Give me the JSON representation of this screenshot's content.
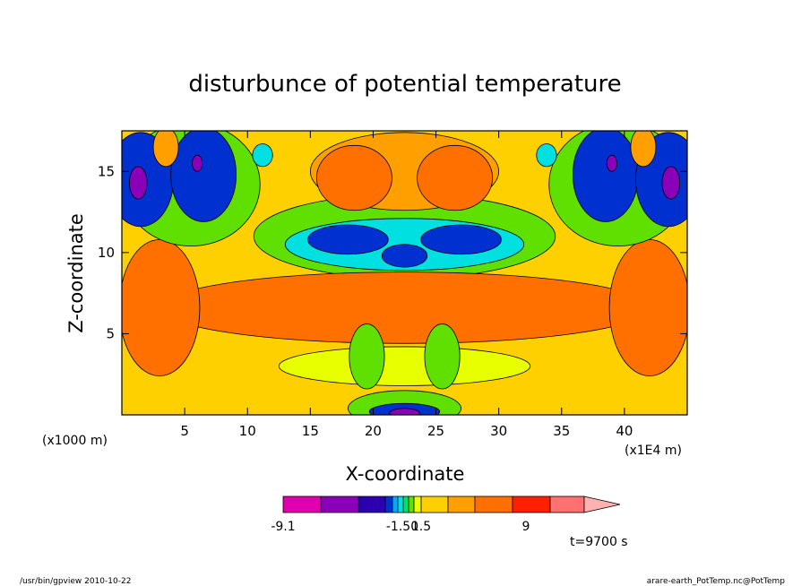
{
  "chart_data": {
    "type": "heatmap",
    "title": "disturbunce of potential temperature",
    "xlabel": "X-coordinate",
    "ylabel": "Z-coordinate",
    "x_unit_left": "(x1000 m)",
    "x_unit_right": "(x1E4 m)",
    "xlim": [
      0,
      45
    ],
    "ylim": [
      0,
      17.5
    ],
    "x_ticks": [
      5,
      10,
      15,
      20,
      25,
      30,
      35,
      40
    ],
    "y_ticks": [
      5,
      10,
      15
    ],
    "colorbar": {
      "tick_labels": [
        "-9.1",
        "-1.50",
        "1.5",
        "9"
      ],
      "colors": [
        "#e000b0",
        "#8a00b8",
        "#2a00b0",
        "#0030d0",
        "#00aaff",
        "#00e0e0",
        "#00e070",
        "#60e000",
        "#e8ff00",
        "#ffd000",
        "#ffa000",
        "#ff7000",
        "#ff2000",
        "#ff7070",
        "#ffb0b0"
      ]
    },
    "field": {
      "background": "#ffd000",
      "blobs": [
        {
          "x": 22.5,
          "z": 11.0,
          "rx": 12.0,
          "rz": 2.6,
          "color": "#60e000"
        },
        {
          "x": 22.5,
          "z": 10.5,
          "rx": 9.5,
          "rz": 1.6,
          "color": "#00e0e0"
        },
        {
          "x": 18.0,
          "z": 10.8,
          "rx": 3.2,
          "rz": 0.9,
          "color": "#0030d0"
        },
        {
          "x": 27.0,
          "z": 10.8,
          "rx": 3.2,
          "rz": 0.9,
          "color": "#0030d0"
        },
        {
          "x": 22.5,
          "z": 9.8,
          "rx": 1.8,
          "rz": 0.7,
          "color": "#0030d0"
        },
        {
          "x": 22.5,
          "z": 6.6,
          "rx": 19.5,
          "rz": 2.2,
          "color": "#ff7000"
        },
        {
          "x": 3.0,
          "z": 6.6,
          "rx": 3.2,
          "rz": 4.2,
          "color": "#ff7000"
        },
        {
          "x": 42.0,
          "z": 6.6,
          "rx": 3.2,
          "rz": 4.2,
          "color": "#ff7000"
        },
        {
          "x": 22.5,
          "z": 3.0,
          "rx": 10.0,
          "rz": 1.2,
          "color": "#e8ff00"
        },
        {
          "x": 19.5,
          "z": 3.6,
          "rx": 1.4,
          "rz": 2.0,
          "color": "#60e000"
        },
        {
          "x": 25.5,
          "z": 3.6,
          "rx": 1.4,
          "rz": 2.0,
          "color": "#60e000"
        },
        {
          "x": 22.5,
          "z": 0.4,
          "rx": 4.5,
          "rz": 1.1,
          "color": "#60e000"
        },
        {
          "x": 22.5,
          "z": 0.2,
          "rx": 2.8,
          "rz": 0.5,
          "color": "#0030d0"
        },
        {
          "x": 22.5,
          "z": 0.1,
          "rx": 1.2,
          "rz": 0.3,
          "color": "#8a00b8"
        },
        {
          "x": 22.5,
          "z": 15.0,
          "rx": 7.5,
          "rz": 2.4,
          "color": "#ffa000"
        },
        {
          "x": 18.5,
          "z": 14.6,
          "rx": 3.0,
          "rz": 2.0,
          "color": "#ff7000"
        },
        {
          "x": 26.5,
          "z": 14.6,
          "rx": 3.0,
          "rz": 2.0,
          "color": "#ff7000"
        },
        {
          "x": 5.5,
          "z": 14.2,
          "rx": 5.5,
          "rz": 3.8,
          "color": "#60e000"
        },
        {
          "x": 39.5,
          "z": 14.2,
          "rx": 5.5,
          "rz": 3.8,
          "color": "#60e000"
        },
        {
          "x": 1.5,
          "z": 14.5,
          "rx": 2.6,
          "rz": 2.9,
          "color": "#0030d0"
        },
        {
          "x": 6.5,
          "z": 14.8,
          "rx": 2.6,
          "rz": 2.9,
          "color": "#0030d0"
        },
        {
          "x": 38.5,
          "z": 14.8,
          "rx": 2.6,
          "rz": 2.9,
          "color": "#0030d0"
        },
        {
          "x": 43.5,
          "z": 14.5,
          "rx": 2.6,
          "rz": 2.9,
          "color": "#0030d0"
        },
        {
          "x": 1.3,
          "z": 14.3,
          "rx": 0.7,
          "rz": 1.0,
          "color": "#8a00b8"
        },
        {
          "x": 6.0,
          "z": 15.5,
          "rx": 0.4,
          "rz": 0.5,
          "color": "#8a00b8"
        },
        {
          "x": 39.0,
          "z": 15.5,
          "rx": 0.4,
          "rz": 0.5,
          "color": "#8a00b8"
        },
        {
          "x": 43.7,
          "z": 14.3,
          "rx": 0.7,
          "rz": 1.0,
          "color": "#8a00b8"
        },
        {
          "x": 11.2,
          "z": 16.0,
          "rx": 0.8,
          "rz": 0.7,
          "color": "#00e0e0"
        },
        {
          "x": 33.8,
          "z": 16.0,
          "rx": 0.8,
          "rz": 0.7,
          "color": "#00e0e0"
        },
        {
          "x": 3.5,
          "z": 16.5,
          "rx": 1.0,
          "rz": 1.2,
          "color": "#ffa000"
        },
        {
          "x": 41.5,
          "z": 16.5,
          "rx": 1.0,
          "rz": 1.2,
          "color": "#ffa000"
        }
      ]
    }
  },
  "time_label": "t=9700 s",
  "footer": {
    "left": "/usr/bin/gpview   2010-10-22",
    "right": "arare-earth_PotTemp.nc@PotTemp"
  }
}
